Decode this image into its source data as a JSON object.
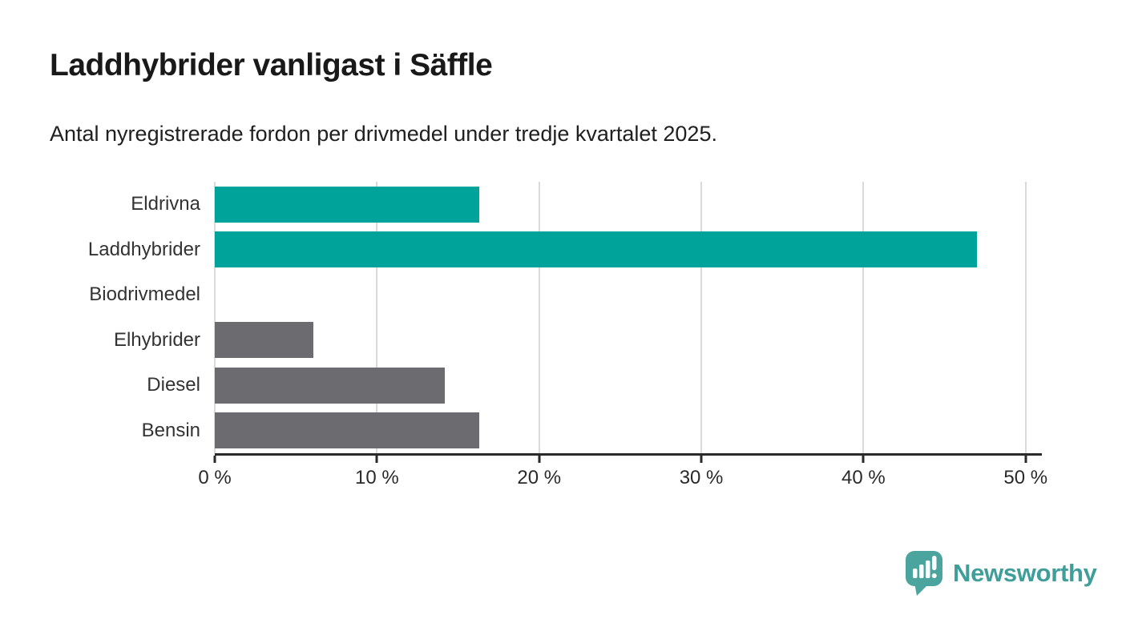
{
  "header": {
    "title": "Laddhybrider vanligast i Säffle",
    "subtitle": "Antal nyregistrerade fordon per drivmedel under tredje kvartalet 2025."
  },
  "chart_data": {
    "type": "bar",
    "orientation": "horizontal",
    "title": "Laddhybrider vanligast i Säffle",
    "subtitle": "Antal nyregistrerade fordon per drivmedel under tredje kvartalet 2025.",
    "categories": [
      "Eldrivna",
      "Laddhybrider",
      "Biodrivmedel",
      "Elhybrider",
      "Diesel",
      "Bensin"
    ],
    "values": [
      16.3,
      47.0,
      0,
      6.1,
      14.2,
      16.3
    ],
    "unit": "%",
    "bar_colors": [
      "#00a39a",
      "#00a39a",
      "#6c6c70",
      "#6c6c70",
      "#6c6c70",
      "#6c6c70"
    ],
    "xlabel": "",
    "ylabel": "",
    "xlim": [
      0,
      51
    ],
    "ticks": [
      0,
      10,
      20,
      30,
      40,
      50
    ],
    "tick_labels": [
      "0 %",
      "10 %",
      "20 %",
      "30 %",
      "40 %",
      "50 %"
    ],
    "grid": true,
    "legend": "none"
  },
  "footer": {
    "brand": "Newsworthy"
  },
  "colors": {
    "accent": "#00a39a",
    "neutral": "#6c6c70",
    "grid": "#dadada",
    "axis": "#2a2a2a",
    "logo": "#4ba49e",
    "wordmark": "#3f9e99"
  }
}
